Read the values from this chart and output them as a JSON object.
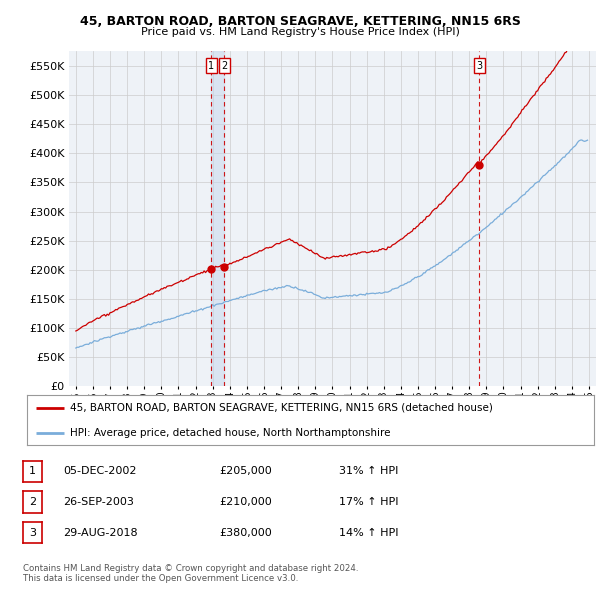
{
  "title_line1": "45, BARTON ROAD, BARTON SEAGRAVE, KETTERING, NN15 6RS",
  "title_line2": "Price paid vs. HM Land Registry's House Price Index (HPI)",
  "red_label": "45, BARTON ROAD, BARTON SEAGRAVE, KETTERING, NN15 6RS (detached house)",
  "blue_label": "HPI: Average price, detached house, North Northamptonshire",
  "transactions": [
    {
      "num": 1,
      "date": "05-DEC-2002",
      "price": "£205,000",
      "pct": "31%",
      "dir": "↑"
    },
    {
      "num": 2,
      "date": "26-SEP-2003",
      "price": "£210,000",
      "pct": "17%",
      "dir": "↑"
    },
    {
      "num": 3,
      "date": "29-AUG-2018",
      "price": "£380,000",
      "pct": "14%",
      "dir": "↑"
    }
  ],
  "footer1": "Contains HM Land Registry data © Crown copyright and database right 2024.",
  "footer2": "This data is licensed under the Open Government Licence v3.0.",
  "ylim": [
    0,
    575000
  ],
  "yticks": [
    0,
    50000,
    100000,
    150000,
    200000,
    250000,
    300000,
    350000,
    400000,
    450000,
    500000,
    550000
  ],
  "red_color": "#cc0000",
  "blue_color": "#7aadda",
  "vline_color": "#cc0000",
  "grid_color": "#cccccc",
  "bg_color": "#ffffff",
  "plot_bg_color": "#eef2f7"
}
